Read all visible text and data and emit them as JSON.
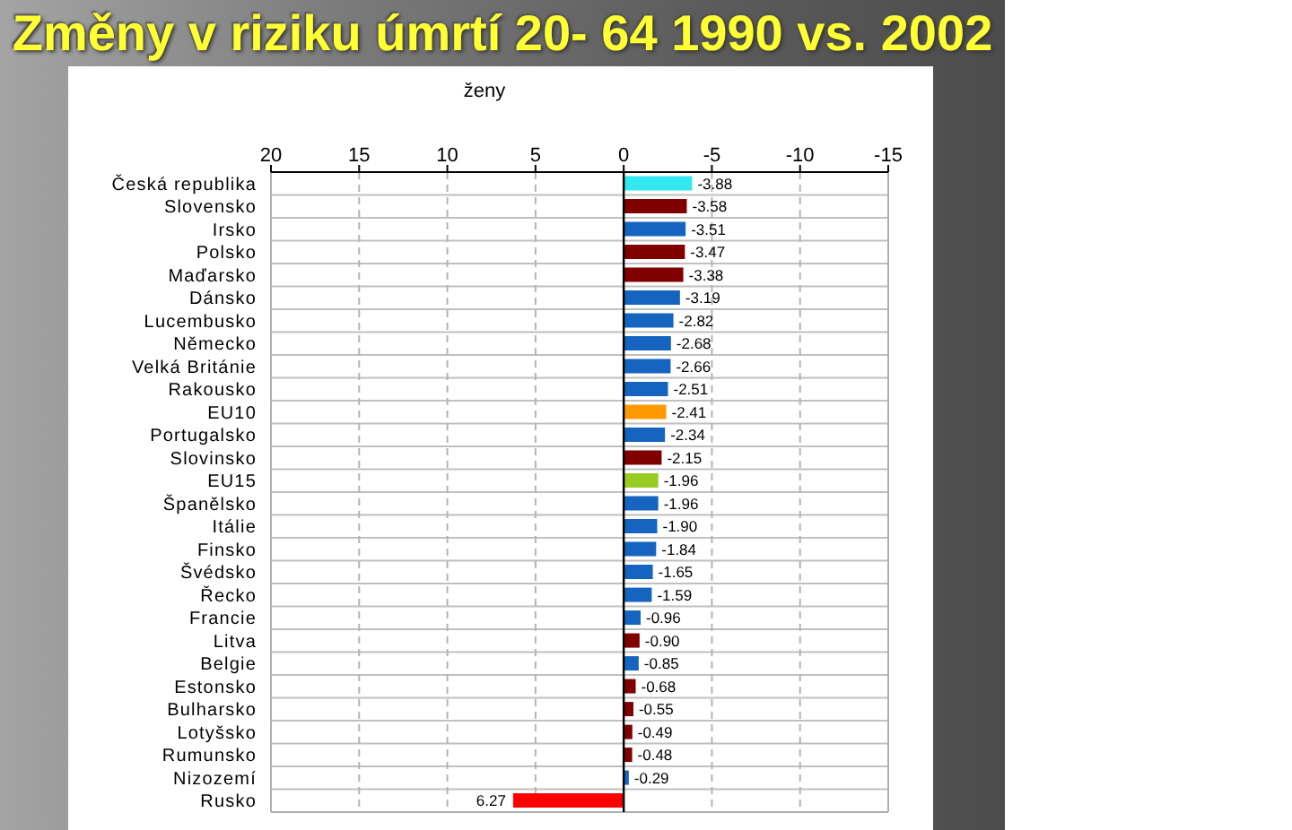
{
  "chart_data": {
    "type": "bar",
    "title": "Změny v riziku úmrtí 20- 64 1990 vs. 2002",
    "subtitle": "ženy",
    "orientation": "horizontal",
    "categories": [
      "Česká republika",
      "Slovensko",
      "Irsko",
      "Polsko",
      "Maďarsko",
      "Dánsko",
      "Lucembusko",
      "Německo",
      "Velká Británie",
      "Rakousko",
      "EU10",
      "Portugalsko",
      "Slovinsko",
      "EU15",
      "Španělsko",
      "Itálie",
      "Finsko",
      "Švédsko",
      "Řecko",
      "Francie",
      "Litva",
      "Belgie",
      "Estonsko",
      "Bulharsko",
      "Lotyšsko",
      "Rumunsko",
      "Nizozemí",
      "Rusko"
    ],
    "values": [
      -3.88,
      -3.58,
      -3.51,
      -3.47,
      -3.38,
      -3.19,
      -2.82,
      -2.68,
      -2.66,
      -2.51,
      -2.41,
      -2.34,
      -2.15,
      -1.96,
      -1.96,
      -1.9,
      -1.84,
      -1.65,
      -1.59,
      -0.96,
      -0.9,
      -0.85,
      -0.68,
      -0.55,
      -0.49,
      -0.48,
      -0.29,
      6.27
    ],
    "value_labels": [
      "-3.88",
      "-3.58",
      "-3.51",
      "-3.47",
      "-3.38",
      "-3.19",
      "-2.82",
      "-2.68",
      "-2.66",
      "-2.51",
      "-2.41",
      "-2.34",
      "-2.15",
      "-1.96",
      "-1.96",
      "-1.90",
      "-1.84",
      "-1.65",
      "-1.59",
      "-0.96",
      "-0.90",
      "-0.85",
      "-0.68",
      "-0.55",
      "-0.49",
      "-0.48",
      "-0.29",
      "6.27"
    ],
    "colors": [
      "#33e8f0",
      "#800000",
      "#1565c0",
      "#800000",
      "#800000",
      "#1565c0",
      "#1565c0",
      "#1565c0",
      "#1565c0",
      "#1565c0",
      "#ff9900",
      "#1565c0",
      "#800000",
      "#99cc22",
      "#1565c0",
      "#1565c0",
      "#1565c0",
      "#1565c0",
      "#1565c0",
      "#1565c0",
      "#800000",
      "#1565c0",
      "#800000",
      "#800000",
      "#800000",
      "#800000",
      "#1565c0",
      "#ff0000"
    ],
    "xlim": [
      20,
      -15
    ],
    "xticks": [
      20,
      15,
      10,
      5,
      0,
      -5,
      -10,
      -15
    ],
    "grid": true
  }
}
